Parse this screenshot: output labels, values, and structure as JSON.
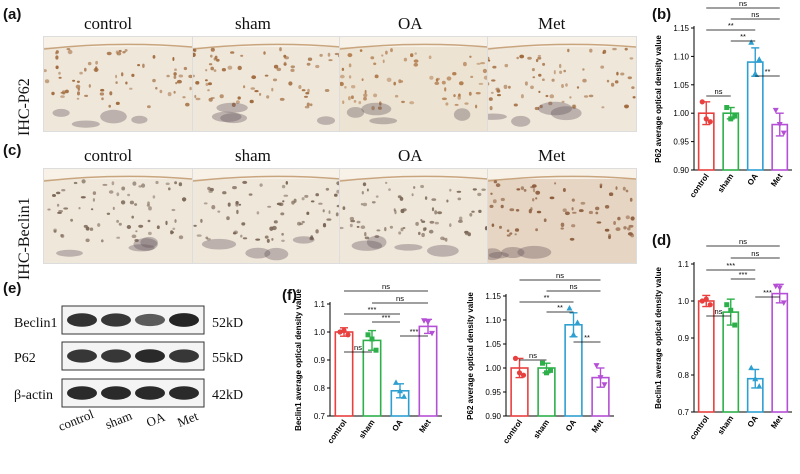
{
  "panels": {
    "a": "(a)",
    "b": "(b)",
    "c": "(c)",
    "d": "(d)",
    "e": "(e)",
    "f": "(f)"
  },
  "ihc": {
    "row_a_label": "IHC-P62",
    "row_c_label": "IHC-Beclin1",
    "groups": [
      "control",
      "sham",
      "OA",
      "Met"
    ]
  },
  "western": {
    "bands": [
      {
        "name": "Beclin1",
        "size": "52kD",
        "intensity": [
          0.85,
          0.8,
          0.55,
          0.95
        ]
      },
      {
        "name": "P62",
        "size": "55kD",
        "intensity": [
          0.8,
          0.8,
          0.9,
          0.8
        ]
      },
      {
        "name": "β-actin",
        "size": "42kD",
        "intensity": [
          0.9,
          0.9,
          0.9,
          0.9
        ]
      }
    ],
    "groups": [
      "control",
      "sham",
      "OA",
      "Met"
    ]
  },
  "colors": {
    "control": "#e8403f",
    "sham": "#2db04a",
    "OA": "#2e9fd1",
    "Met": "#b44fd6"
  },
  "chart_data": [
    {
      "id": "b",
      "type": "bar",
      "categories": [
        "control",
        "sham",
        "OA",
        "Met"
      ],
      "values": [
        1.0,
        1.0,
        1.09,
        0.98
      ],
      "errors": [
        0.02,
        0.01,
        0.025,
        0.02
      ],
      "points": [
        [
          1.02,
          0.985,
          0.99
        ],
        [
          1.01,
          0.995,
          0.99
        ],
        [
          1.125,
          1.095,
          1.07
        ],
        [
          1.005,
          0.965,
          0.98
        ]
      ],
      "ylabel": "P62  average optical density value",
      "ylim": [
        0.9,
        1.15
      ],
      "yticks": [
        "0.90",
        "0.95",
        "1.00",
        "1.05",
        "1.10",
        "1.15"
      ],
      "significance": [
        {
          "from": 0,
          "to": 1,
          "label": "ns"
        },
        {
          "from": 2,
          "to": 3,
          "label": "**"
        },
        {
          "from": 1,
          "to": 2,
          "label": "**"
        },
        {
          "from": 0,
          "to": 2,
          "label": "**"
        },
        {
          "from": 1,
          "to": 3,
          "label": "ns"
        },
        {
          "from": 0,
          "to": 3,
          "label": "ns"
        }
      ]
    },
    {
      "id": "d",
      "type": "bar",
      "categories": [
        "control",
        "sham",
        "OA",
        "Met"
      ],
      "values": [
        1.0,
        0.97,
        0.79,
        1.02
      ],
      "errors": [
        0.015,
        0.035,
        0.025,
        0.025
      ],
      "points": [
        [
          1.0,
          0.99,
          1.005
        ],
        [
          0.99,
          0.935,
          0.975
        ],
        [
          0.82,
          0.77,
          0.79
        ],
        [
          1.04,
          0.995,
          1.035
        ]
      ],
      "ylabel": "Beclin1  average optical density value",
      "ylim": [
        0.7,
        1.1
      ],
      "yticks": [
        "0.7",
        "0.8",
        "0.9",
        "1.0",
        "1.1"
      ],
      "significance": [
        {
          "from": 0,
          "to": 1,
          "label": "ns"
        },
        {
          "from": 2,
          "to": 3,
          "label": "***"
        },
        {
          "from": 1,
          "to": 2,
          "label": "***"
        },
        {
          "from": 0,
          "to": 2,
          "label": "***"
        },
        {
          "from": 1,
          "to": 3,
          "label": "ns"
        },
        {
          "from": 0,
          "to": 3,
          "label": "ns"
        }
      ]
    },
    {
      "id": "f1",
      "type": "bar",
      "categories": [
        "control",
        "sham",
        "OA",
        "Met"
      ],
      "values": [
        1.0,
        0.97,
        0.79,
        1.02
      ],
      "errors": [
        0.015,
        0.035,
        0.025,
        0.025
      ],
      "points": [
        [
          1.0,
          0.99,
          1.005
        ],
        [
          0.99,
          0.935,
          0.975
        ],
        [
          0.82,
          0.77,
          0.79
        ],
        [
          1.04,
          0.995,
          1.035
        ]
      ],
      "ylabel": "Beclin1  average optical density value",
      "ylim": [
        0.7,
        1.1
      ],
      "yticks": [
        "0.7",
        "0.8",
        "0.9",
        "1.0",
        "1.1"
      ],
      "significance": [
        {
          "from": 0,
          "to": 1,
          "label": "ns"
        },
        {
          "from": 2,
          "to": 3,
          "label": "***"
        },
        {
          "from": 1,
          "to": 2,
          "label": "***"
        },
        {
          "from": 0,
          "to": 2,
          "label": "***"
        },
        {
          "from": 1,
          "to": 3,
          "label": "ns"
        },
        {
          "from": 0,
          "to": 3,
          "label": "ns"
        }
      ]
    },
    {
      "id": "f2",
      "type": "bar",
      "categories": [
        "control",
        "sham",
        "OA",
        "Met"
      ],
      "values": [
        1.0,
        1.0,
        1.09,
        0.98
      ],
      "errors": [
        0.02,
        0.01,
        0.025,
        0.02
      ],
      "points": [
        [
          1.02,
          0.985,
          0.99
        ],
        [
          1.01,
          0.995,
          0.99
        ],
        [
          1.125,
          1.095,
          1.07
        ],
        [
          1.005,
          0.965,
          0.98
        ]
      ],
      "ylabel": "P62  average optical density value",
      "ylim": [
        0.9,
        1.15
      ],
      "yticks": [
        "0.90",
        "0.95",
        "1.00",
        "1.05",
        "1.10",
        "1.15"
      ],
      "significance": [
        {
          "from": 0,
          "to": 1,
          "label": "ns"
        },
        {
          "from": 2,
          "to": 3,
          "label": "**"
        },
        {
          "from": 1,
          "to": 2,
          "label": "**"
        },
        {
          "from": 0,
          "to": 2,
          "label": "**"
        },
        {
          "from": 1,
          "to": 3,
          "label": "ns"
        },
        {
          "from": 0,
          "to": 3,
          "label": "ns"
        }
      ]
    }
  ]
}
